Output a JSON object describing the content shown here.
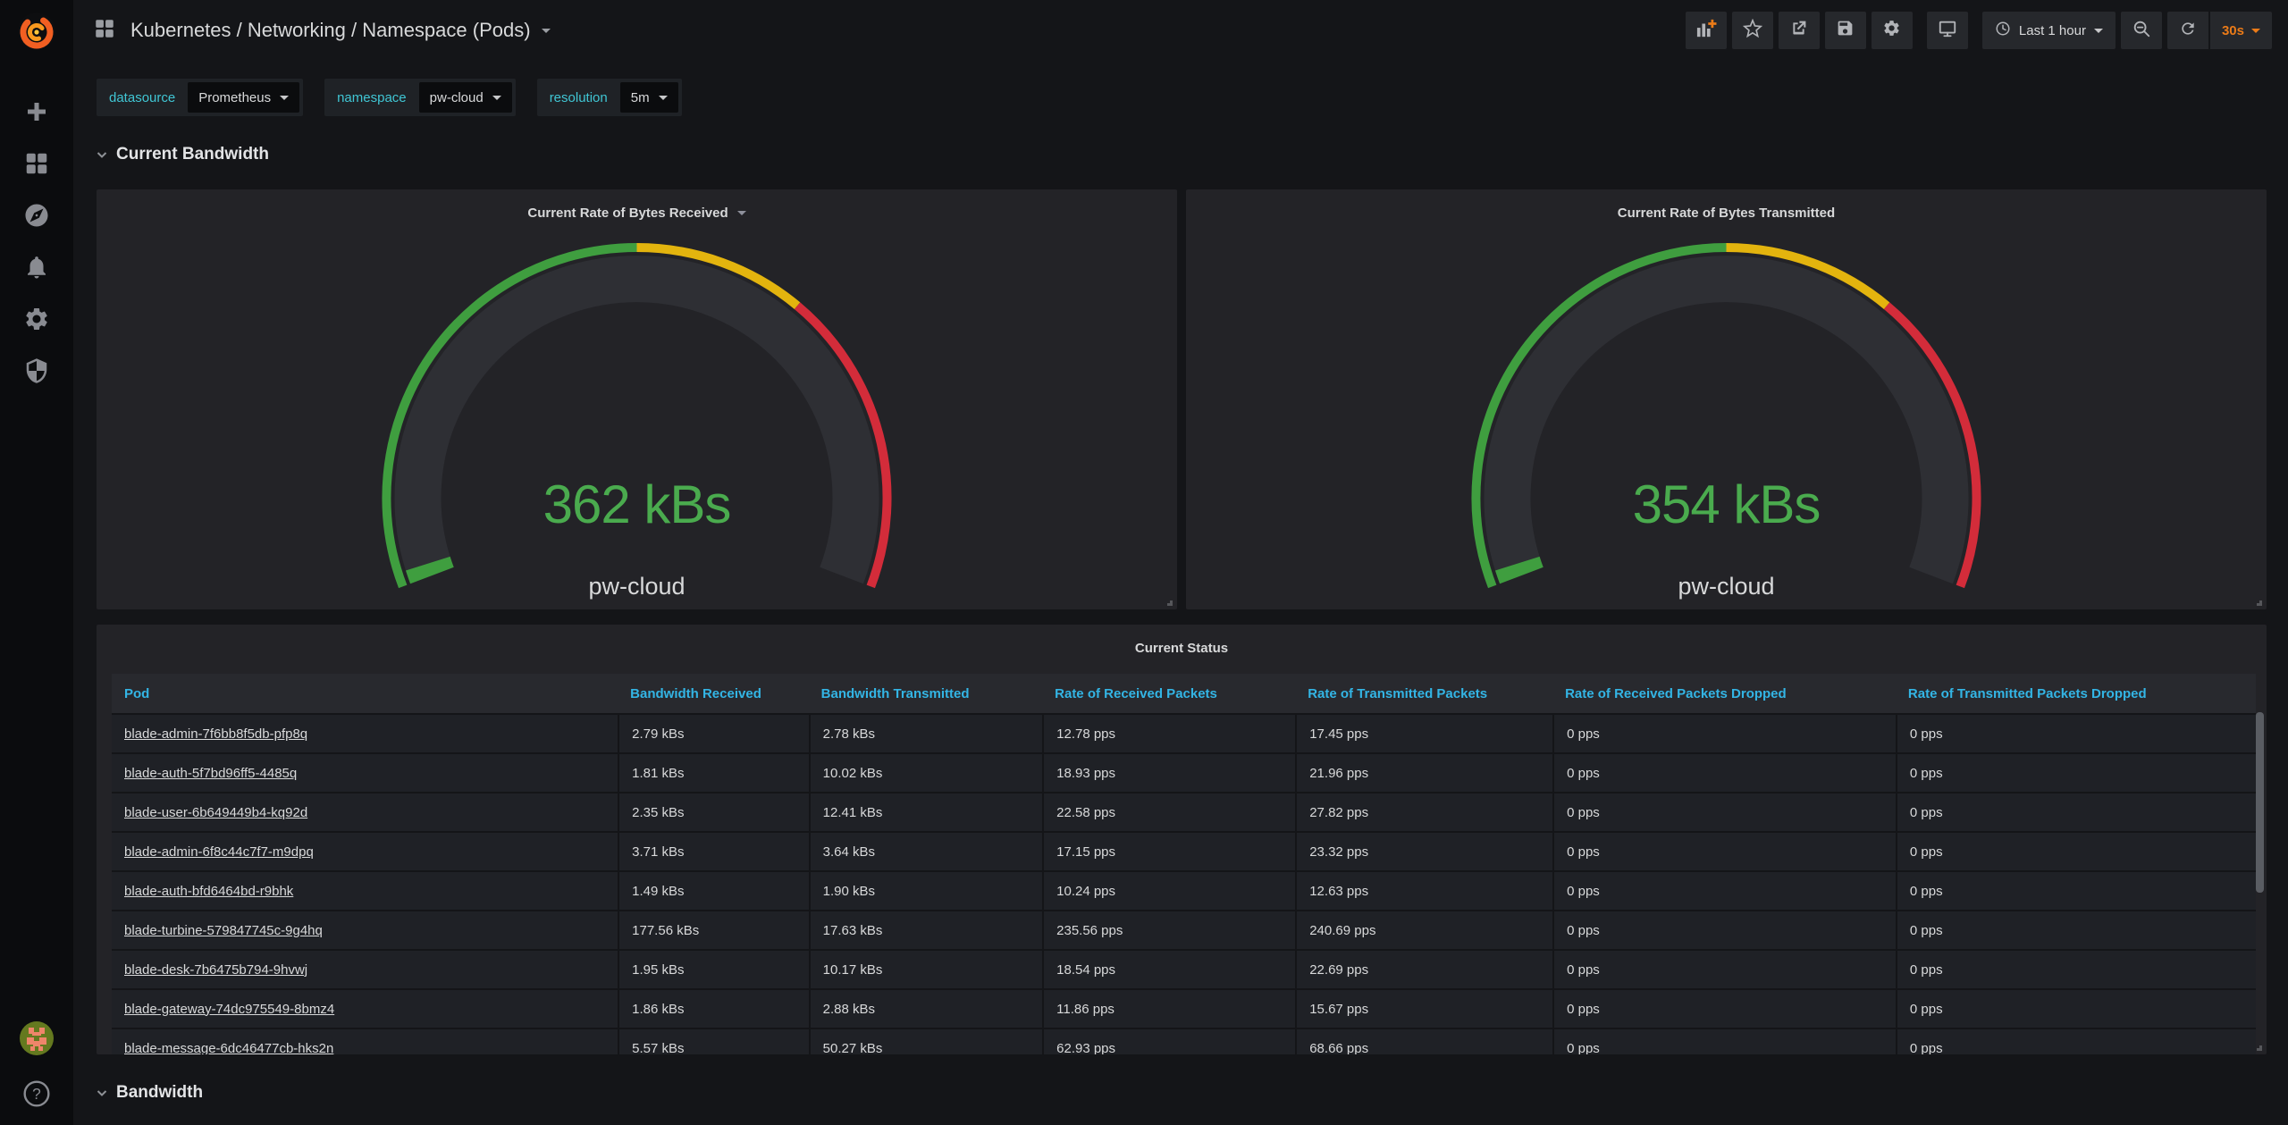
{
  "colors": {
    "accent_cyan": "#40c6d4",
    "link_blue": "#33b5e5",
    "refresh_orange": "#eb7b18",
    "gauge_green": "#3f9e3f",
    "gauge_yellow": "#e3b40e",
    "gauge_red": "#d32c3a",
    "value_green": "#4aab4e",
    "panel_bg": "#232327",
    "page_bg": "#141518"
  },
  "sidebar": {
    "icons": [
      "grafana-logo",
      "plus",
      "apps-grid",
      "explore-compass",
      "alerting-bell",
      "settings-gear",
      "security-shield",
      "avatar",
      "help"
    ]
  },
  "navbar": {
    "title": "Kubernetes / Networking / Namespace (Pods)",
    "left_icons": [
      "apps-grid",
      "caret-down"
    ],
    "right_icons": [
      "add-panel",
      "star",
      "share",
      "save",
      "gear",
      "tv",
      "clock",
      "search-minus",
      "refresh"
    ]
  },
  "toolbar": {
    "time_range": "Last 1 hour",
    "refresh_interval": "30s"
  },
  "variables": [
    {
      "label": "datasource",
      "value": "Prometheus"
    },
    {
      "label": "namespace",
      "value": "pw-cloud"
    },
    {
      "label": "resolution",
      "value": "5m"
    }
  ],
  "sections": {
    "current_bandwidth": "Current Bandwidth",
    "bandwidth": "Bandwidth"
  },
  "gauges": [
    {
      "title": "Current Rate of Bytes Received",
      "value": "362 kBs",
      "label": "pw-cloud"
    },
    {
      "title": "Current Rate of Bytes Transmitted",
      "value": "354 kBs",
      "label": "pw-cloud"
    }
  ],
  "table": {
    "title": "Current Status",
    "columns": [
      "Pod",
      "Bandwidth Received",
      "Bandwidth Transmitted",
      "Rate of Received Packets",
      "Rate of Transmitted Packets",
      "Rate of Received Packets Dropped",
      "Rate of Transmitted Packets Dropped"
    ],
    "column_widths": [
      "23.6%",
      "8.9%",
      "10.9%",
      "11.8%",
      "12.0%",
      "16.0%",
      "16.8%"
    ],
    "rows": [
      [
        "blade-admin-7f6bb8f5db-pfp8q",
        "2.79 kBs",
        "2.78 kBs",
        "12.78 pps",
        "17.45 pps",
        "0 pps",
        "0 pps"
      ],
      [
        "blade-auth-5f7bd96ff5-4485q",
        "1.81 kBs",
        "10.02 kBs",
        "18.93 pps",
        "21.96 pps",
        "0 pps",
        "0 pps"
      ],
      [
        "blade-user-6b649449b4-kq92d",
        "2.35 kBs",
        "12.41 kBs",
        "22.58 pps",
        "27.82 pps",
        "0 pps",
        "0 pps"
      ],
      [
        "blade-admin-6f8c44c7f7-m9dpq",
        "3.71 kBs",
        "3.64 kBs",
        "17.15 pps",
        "23.32 pps",
        "0 pps",
        "0 pps"
      ],
      [
        "blade-auth-bfd6464bd-r9bhk",
        "1.49 kBs",
        "1.90 kBs",
        "10.24 pps",
        "12.63 pps",
        "0 pps",
        "0 pps"
      ],
      [
        "blade-turbine-579847745c-9g4hq",
        "177.56 kBs",
        "17.63 kBs",
        "235.56 pps",
        "240.69 pps",
        "0 pps",
        "0 pps"
      ],
      [
        "blade-desk-7b6475b794-9hvwj",
        "1.95 kBs",
        "10.17 kBs",
        "18.54 pps",
        "22.69 pps",
        "0 pps",
        "0 pps"
      ],
      [
        "blade-gateway-74dc975549-8bmz4",
        "1.86 kBs",
        "2.88 kBs",
        "11.86 pps",
        "15.67 pps",
        "0 pps",
        "0 pps"
      ],
      [
        "blade-message-6dc46477cb-hks2n",
        "5.57 kBs",
        "50.27 kBs",
        "62.93 pps",
        "68.66 pps",
        "0 pps",
        "0 pps"
      ]
    ]
  }
}
